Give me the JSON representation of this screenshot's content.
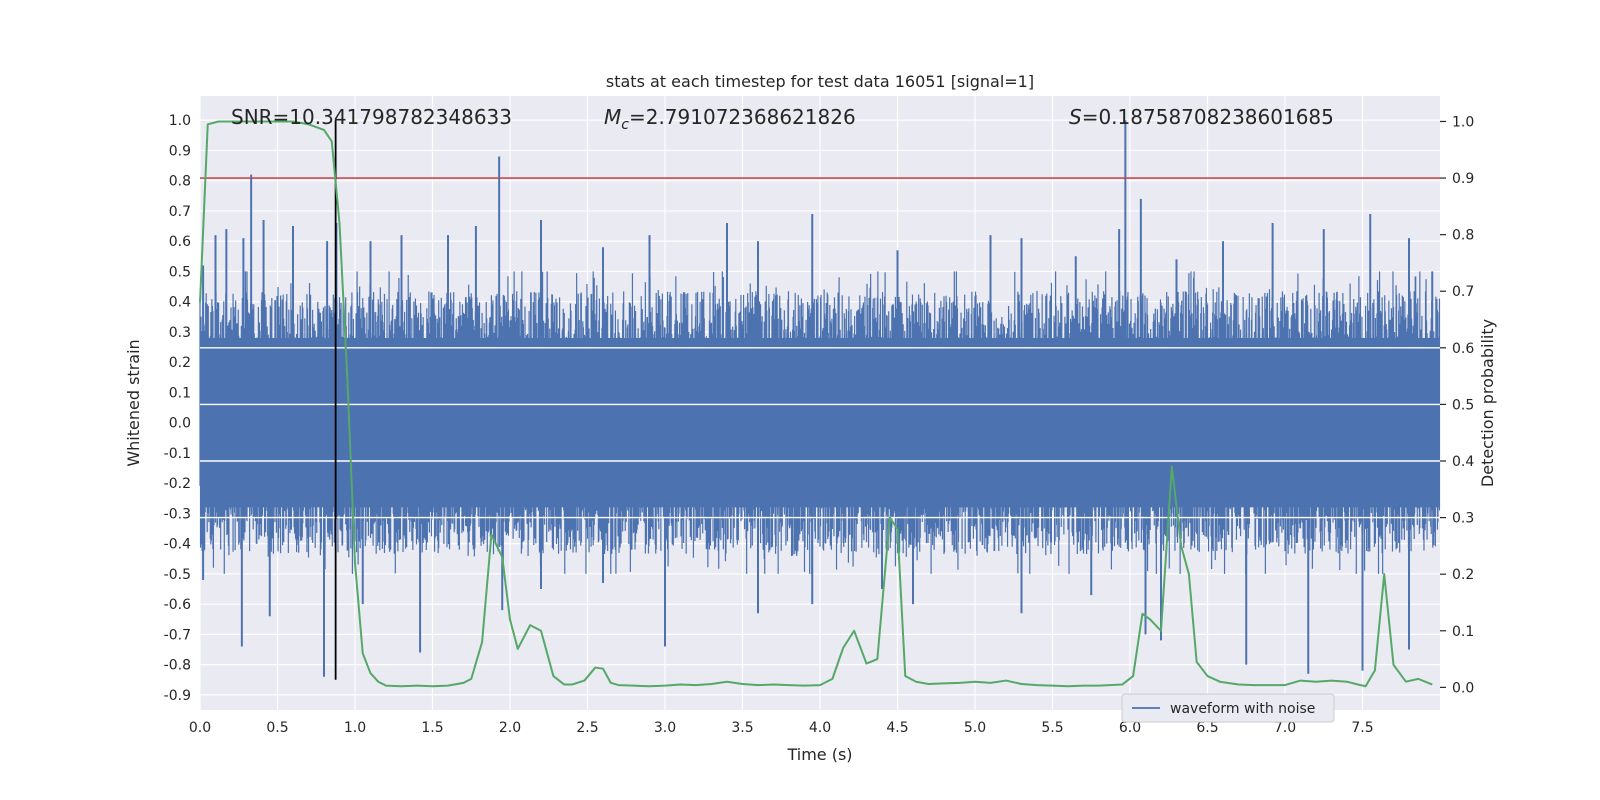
{
  "chart_data": {
    "type": "line",
    "title": "stats at each timestep for test data 16051 [signal=1]",
    "xlabel": "Time (s)",
    "ylabel": "Whitened strain",
    "y2label": "Detection probability",
    "xlim": [
      0.0,
      8.0
    ],
    "ylim": [
      -0.95,
      1.08
    ],
    "y2lim": [
      -0.04,
      1.045
    ],
    "xticks": [
      0.0,
      0.5,
      1.0,
      1.5,
      2.0,
      2.5,
      3.0,
      3.5,
      4.0,
      4.5,
      5.0,
      5.5,
      6.0,
      6.5,
      7.0,
      7.5
    ],
    "xtick_labels": [
      "0.0",
      "0.5",
      "1.0",
      "1.5",
      "2.0",
      "2.5",
      "3.0",
      "3.5",
      "4.0",
      "4.5",
      "5.0",
      "5.5",
      "6.0",
      "6.5",
      "7.0",
      "7.5"
    ],
    "yticks": [
      1.0,
      0.9,
      0.8,
      0.7,
      0.6,
      0.5,
      0.4,
      0.3,
      0.2,
      0.1,
      0.0,
      -0.1,
      -0.2,
      -0.3,
      -0.4,
      -0.5,
      -0.6,
      -0.7,
      -0.8,
      -0.9
    ],
    "ytick_labels": [
      "1.0",
      "0.9",
      "0.8",
      "0.7",
      "0.6",
      "0.5",
      "0.4",
      "0.3",
      "0.2",
      "0.1",
      "0.0",
      "-0.1",
      "-0.2",
      "-0.3",
      "-0.4",
      "-0.5",
      "-0.6",
      "-0.7",
      "-0.8",
      "-0.9"
    ],
    "y2ticks": [
      1.0,
      0.9,
      0.8,
      0.7,
      0.6,
      0.5,
      0.4,
      0.3,
      0.2,
      0.1,
      0.0
    ],
    "y2tick_labels": [
      "1.0",
      "0.9",
      "0.8",
      "0.7",
      "0.6",
      "0.5",
      "0.4",
      "0.3",
      "0.2",
      "0.1",
      "0.0"
    ],
    "grid": true,
    "legend": {
      "placement": "lower-center-right",
      "entries": [
        "waveform with noise"
      ]
    },
    "annotations": {
      "snr": "SNR=10.341798782348633",
      "mc_symbol": "M",
      "mc_sub": "c",
      "mc_value": "=2.791072368621826",
      "s_symbol": "S",
      "s_value": "=0.18758708238601685"
    },
    "threshold_line": {
      "axis": "y2",
      "value": 0.9,
      "color": "#c44e52"
    },
    "marker_line": {
      "x": 0.875,
      "y_from": -0.85,
      "y_to": 1.0,
      "color": "#000000"
    },
    "waveform": {
      "name": "waveform with noise",
      "color": "#4c72b0",
      "description_params": {
        "core_amplitude": 0.3,
        "sample_count": 2400
      },
      "peaks_pos": [
        [
          0.02,
          0.52
        ],
        [
          0.1,
          0.62
        ],
        [
          0.17,
          0.64
        ],
        [
          0.28,
          0.61
        ],
        [
          0.33,
          0.82
        ],
        [
          0.41,
          0.67
        ],
        [
          0.6,
          0.65
        ],
        [
          0.82,
          0.6
        ],
        [
          0.88,
          0.66
        ],
        [
          1.1,
          0.6
        ],
        [
          1.3,
          0.62
        ],
        [
          1.6,
          0.62
        ],
        [
          1.78,
          0.65
        ],
        [
          1.93,
          0.88
        ],
        [
          2.2,
          0.67
        ],
        [
          2.6,
          0.58
        ],
        [
          2.9,
          0.62
        ],
        [
          3.4,
          0.66
        ],
        [
          3.6,
          0.6
        ],
        [
          3.95,
          0.69
        ],
        [
          4.5,
          0.57
        ],
        [
          5.1,
          0.62
        ],
        [
          5.3,
          0.61
        ],
        [
          5.65,
          0.55
        ],
        [
          5.93,
          0.64
        ],
        [
          5.97,
          1.0
        ],
        [
          6.07,
          0.74
        ],
        [
          6.3,
          0.54
        ],
        [
          6.6,
          0.6
        ],
        [
          6.92,
          0.66
        ],
        [
          7.25,
          0.64
        ],
        [
          7.55,
          0.69
        ],
        [
          7.8,
          0.61
        ],
        [
          7.95,
          0.5
        ]
      ],
      "peaks_neg": [
        [
          0.02,
          -0.52
        ],
        [
          0.27,
          -0.74
        ],
        [
          0.45,
          -0.64
        ],
        [
          0.8,
          -0.84
        ],
        [
          1.05,
          -0.6
        ],
        [
          1.42,
          -0.76
        ],
        [
          1.95,
          -0.62
        ],
        [
          2.2,
          -0.55
        ],
        [
          2.6,
          -0.53
        ],
        [
          3.0,
          -0.74
        ],
        [
          3.6,
          -0.63
        ],
        [
          3.95,
          -0.6
        ],
        [
          4.4,
          -0.55
        ],
        [
          4.6,
          -0.6
        ],
        [
          5.3,
          -0.63
        ],
        [
          5.75,
          -0.57
        ],
        [
          6.1,
          -0.7
        ],
        [
          6.2,
          -0.72
        ],
        [
          6.75,
          -0.8
        ],
        [
          7.15,
          -0.83
        ],
        [
          7.5,
          -0.82
        ],
        [
          7.8,
          -0.75
        ]
      ]
    },
    "probability": {
      "name": "detection probability",
      "color": "#55a868",
      "axis": "y2",
      "x": [
        0.0,
        0.05,
        0.12,
        0.2,
        0.3,
        0.4,
        0.5,
        0.6,
        0.7,
        0.8,
        0.85,
        0.9,
        0.95,
        1.0,
        1.05,
        1.1,
        1.15,
        1.2,
        1.3,
        1.4,
        1.5,
        1.6,
        1.7,
        1.75,
        1.82,
        1.88,
        1.95,
        2.0,
        2.05,
        2.13,
        2.2,
        2.28,
        2.35,
        2.4,
        2.48,
        2.55,
        2.6,
        2.65,
        2.7,
        2.8,
        2.9,
        3.0,
        3.1,
        3.2,
        3.3,
        3.4,
        3.5,
        3.6,
        3.7,
        3.8,
        3.9,
        4.0,
        4.08,
        4.15,
        4.22,
        4.3,
        4.37,
        4.45,
        4.5,
        4.55,
        4.62,
        4.7,
        4.8,
        4.9,
        5.0,
        5.1,
        5.2,
        5.3,
        5.4,
        5.5,
        5.6,
        5.7,
        5.8,
        5.95,
        6.02,
        6.08,
        6.13,
        6.2,
        6.27,
        6.33,
        6.38,
        6.43,
        6.5,
        6.58,
        6.7,
        6.8,
        6.9,
        7.0,
        7.1,
        7.2,
        7.3,
        7.4,
        7.47,
        7.52,
        7.58,
        7.64,
        7.7,
        7.78,
        7.86,
        7.95
      ],
      "y": [
        0.68,
        0.995,
        1.0,
        1.0,
        1.0,
        1.0,
        1.0,
        1.0,
        0.995,
        0.985,
        0.965,
        0.82,
        0.55,
        0.22,
        0.06,
        0.025,
        0.01,
        0.003,
        0.002,
        0.003,
        0.002,
        0.003,
        0.008,
        0.015,
        0.08,
        0.27,
        0.23,
        0.12,
        0.068,
        0.11,
        0.1,
        0.02,
        0.005,
        0.005,
        0.012,
        0.035,
        0.033,
        0.008,
        0.004,
        0.003,
        0.002,
        0.003,
        0.005,
        0.004,
        0.006,
        0.01,
        0.006,
        0.004,
        0.005,
        0.004,
        0.003,
        0.004,
        0.015,
        0.07,
        0.1,
        0.042,
        0.05,
        0.3,
        0.28,
        0.02,
        0.01,
        0.006,
        0.007,
        0.008,
        0.01,
        0.008,
        0.012,
        0.006,
        0.004,
        0.003,
        0.002,
        0.003,
        0.003,
        0.005,
        0.02,
        0.13,
        0.12,
        0.1,
        0.39,
        0.25,
        0.2,
        0.045,
        0.02,
        0.01,
        0.005,
        0.004,
        0.004,
        0.004,
        0.012,
        0.01,
        0.012,
        0.01,
        0.005,
        0.002,
        0.03,
        0.2,
        0.04,
        0.01,
        0.015,
        0.005
      ]
    }
  }
}
